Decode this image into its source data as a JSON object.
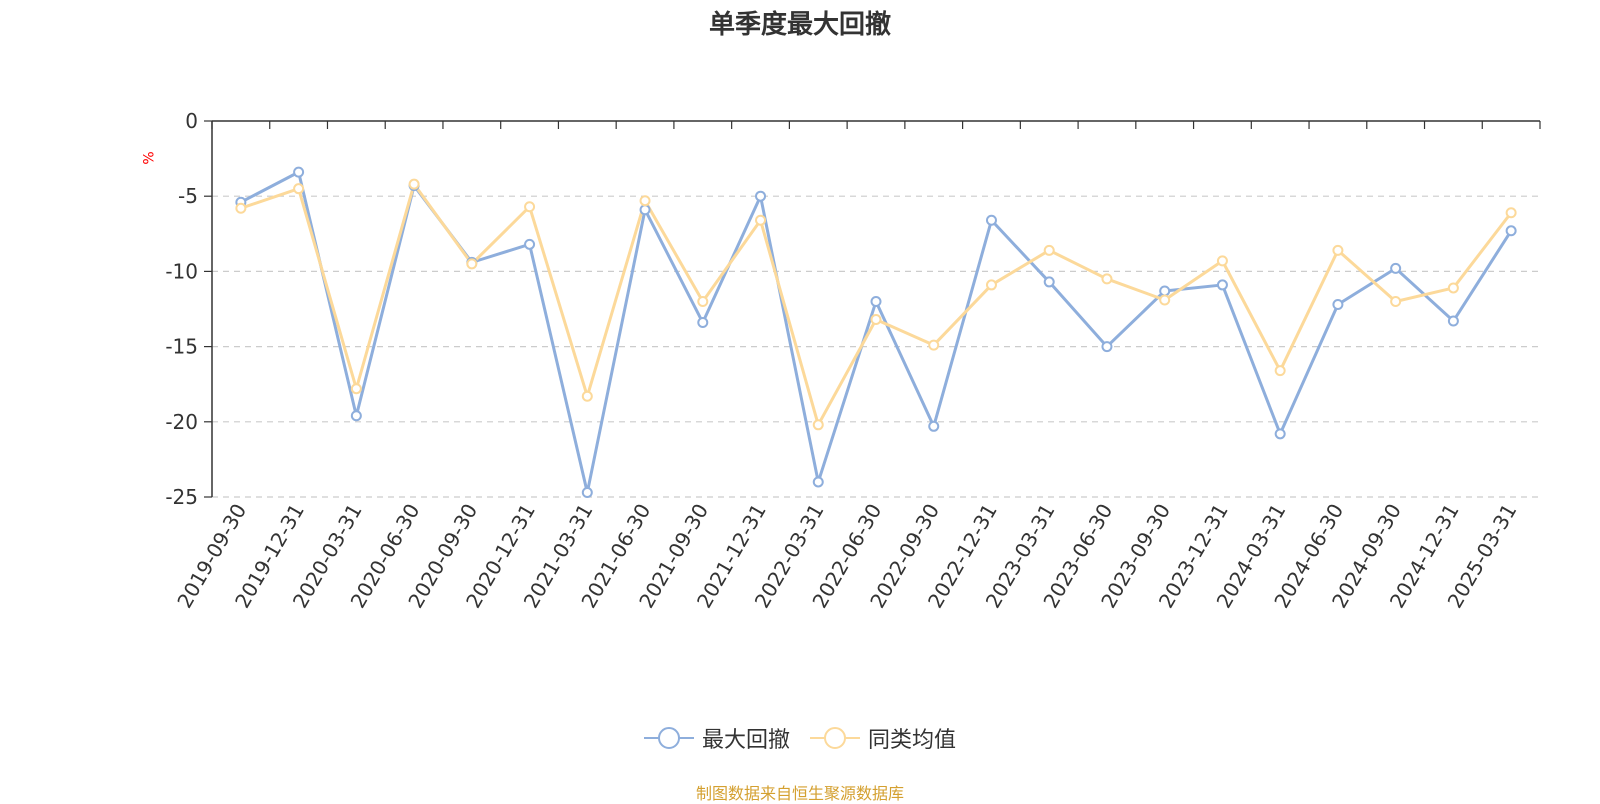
{
  "chart_data": {
    "type": "line",
    "title": "单季度最大回撤",
    "ylabel": "%",
    "ylim": [
      -25,
      0
    ],
    "yticks": [
      0,
      -5,
      -10,
      -15,
      -20,
      -25
    ],
    "grid": true,
    "legend_position": "bottom",
    "categories": [
      "2019-09-30",
      "2019-12-31",
      "2020-03-31",
      "2020-06-30",
      "2020-09-30",
      "2020-12-31",
      "2021-03-31",
      "2021-06-30",
      "2021-09-30",
      "2021-12-31",
      "2022-03-31",
      "2022-06-30",
      "2022-09-30",
      "2022-12-31",
      "2023-03-31",
      "2023-06-30",
      "2023-09-30",
      "2023-12-31",
      "2024-03-31",
      "2024-06-30",
      "2024-09-30",
      "2024-12-31",
      "2025-03-31"
    ],
    "series": [
      {
        "name": "最大回撤",
        "color": "#8eaedc",
        "values": [
          -5.4,
          -3.4,
          -19.6,
          -4.3,
          -9.4,
          -8.2,
          -24.7,
          -5.9,
          -13.4,
          -5.0,
          -24.0,
          -12.0,
          -20.3,
          -6.6,
          -10.7,
          -15.0,
          -11.3,
          -10.9,
          -20.8,
          -12.2,
          -9.8,
          -13.3,
          -7.3
        ]
      },
      {
        "name": "同类均值",
        "color": "#fcd99a",
        "values": [
          -5.8,
          -4.5,
          -17.8,
          -4.2,
          -9.5,
          -5.7,
          -18.3,
          -5.3,
          -12.0,
          -6.6,
          -20.2,
          -13.2,
          -14.9,
          -10.9,
          -8.6,
          -10.5,
          -11.9,
          -9.3,
          -16.6,
          -8.6,
          -12.0,
          -11.1,
          -6.1
        ]
      }
    ]
  },
  "source_text": "制图数据来自恒生聚源数据库"
}
